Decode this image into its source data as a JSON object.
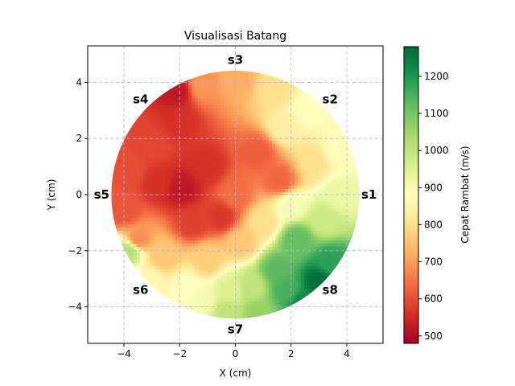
{
  "chart_data": {
    "type": "heatmap",
    "title": "Visualisasi Batang",
    "xlabel": "X (cm)",
    "ylabel": "Y (cm)",
    "xlim": [
      -5.3,
      5.3
    ],
    "ylim": [
      -5.3,
      5.3
    ],
    "x_ticks": [
      -4,
      -2,
      0,
      2,
      4
    ],
    "y_ticks": [
      -4,
      -2,
      0,
      2,
      4
    ],
    "x_tick_labels": [
      "−4",
      "−2",
      "0",
      "2",
      "4"
    ],
    "y_tick_labels": [
      "−4",
      "−2",
      "0",
      "2",
      "4"
    ],
    "grid": true,
    "colormap": "RdYlGn",
    "colorbar": {
      "label": "Cepat Rambat (m/s)",
      "min": 480,
      "max": 1280,
      "ticks": [
        500,
        600,
        700,
        800,
        900,
        1000,
        1100,
        1200
      ],
      "tick_labels": [
        "500",
        "600",
        "700",
        "800",
        "900",
        "1000",
        "1100",
        "1200"
      ]
    },
    "disk_radius_cm": 4.45,
    "sensors": [
      {
        "name": "s1",
        "x": 4.8,
        "y": 0
      },
      {
        "name": "s2",
        "x": 3.4,
        "y": 3.4
      },
      {
        "name": "s3",
        "x": 0,
        "y": 4.8
      },
      {
        "name": "s4",
        "x": -3.4,
        "y": 3.4
      },
      {
        "name": "s5",
        "x": -4.8,
        "y": 0
      },
      {
        "name": "s6",
        "x": -3.4,
        "y": -3.4
      },
      {
        "name": "s7",
        "x": 0,
        "y": -4.8
      },
      {
        "name": "s8",
        "x": 3.4,
        "y": -3.4
      }
    ],
    "field_points": [
      {
        "x": 0,
        "y": 0,
        "v": 640
      },
      {
        "x": -1.9,
        "y": 0.2,
        "v": 520
      },
      {
        "x": -2.8,
        "y": 0.4,
        "v": 560
      },
      {
        "x": -1.0,
        "y": 1.0,
        "v": 560
      },
      {
        "x": -0.5,
        "y": -0.8,
        "v": 570
      },
      {
        "x": -1.5,
        "y": -1.0,
        "v": 580
      },
      {
        "x": 1.6,
        "y": 0.5,
        "v": 630
      },
      {
        "x": 0.8,
        "y": 1.5,
        "v": 620
      },
      {
        "x": -2.0,
        "y": 2.6,
        "v": 560
      },
      {
        "x": -3.0,
        "y": 1.8,
        "v": 590
      },
      {
        "x": -3.8,
        "y": 0.8,
        "v": 600
      },
      {
        "x": -4.0,
        "y": -0.6,
        "v": 610
      },
      {
        "x": -3.5,
        "y": -1.6,
        "v": 680
      },
      {
        "x": -2.6,
        "y": -2.3,
        "v": 760
      },
      {
        "x": -1.0,
        "y": -2.3,
        "v": 770
      },
      {
        "x": 0.2,
        "y": -1.7,
        "v": 760
      },
      {
        "x": 1.0,
        "y": -1.0,
        "v": 800
      },
      {
        "x": 2.0,
        "y": -0.4,
        "v": 900
      },
      {
        "x": 3.8,
        "y": 0,
        "v": 920
      },
      {
        "x": 3.6,
        "y": 1.6,
        "v": 870
      },
      {
        "x": 2.6,
        "y": 3.0,
        "v": 880
      },
      {
        "x": 1.4,
        "y": 3.8,
        "v": 800
      },
      {
        "x": 0.0,
        "y": 4.1,
        "v": 720
      },
      {
        "x": -1.2,
        "y": 3.9,
        "v": 690
      },
      {
        "x": -2.1,
        "y": 3.7,
        "v": 520
      },
      {
        "x": 1.8,
        "y": 2.4,
        "v": 840
      },
      {
        "x": 2.8,
        "y": 1.2,
        "v": 800
      },
      {
        "x": 3.2,
        "y": -0.9,
        "v": 980
      },
      {
        "x": 2.2,
        "y": -1.6,
        "v": 1120
      },
      {
        "x": 3.4,
        "y": -2.4,
        "v": 1180
      },
      {
        "x": 3.0,
        "y": -3.1,
        "v": 1270
      },
      {
        "x": 1.8,
        "y": -3.4,
        "v": 1150
      },
      {
        "x": 1.5,
        "y": -2.7,
        "v": 1130
      },
      {
        "x": 0.6,
        "y": -3.3,
        "v": 1000
      },
      {
        "x": -0.2,
        "y": -3.4,
        "v": 950
      },
      {
        "x": -0.3,
        "y": -4.2,
        "v": 1000
      },
      {
        "x": -1.2,
        "y": -3.8,
        "v": 900
      },
      {
        "x": -1.8,
        "y": -3.3,
        "v": 880
      },
      {
        "x": -3.0,
        "y": -3.0,
        "v": 860
      },
      {
        "x": -3.8,
        "y": -2.0,
        "v": 1010
      },
      {
        "x": 0.8,
        "y": -4.2,
        "v": 1060
      },
      {
        "x": 2.4,
        "y": -3.9,
        "v": 1220
      }
    ]
  }
}
